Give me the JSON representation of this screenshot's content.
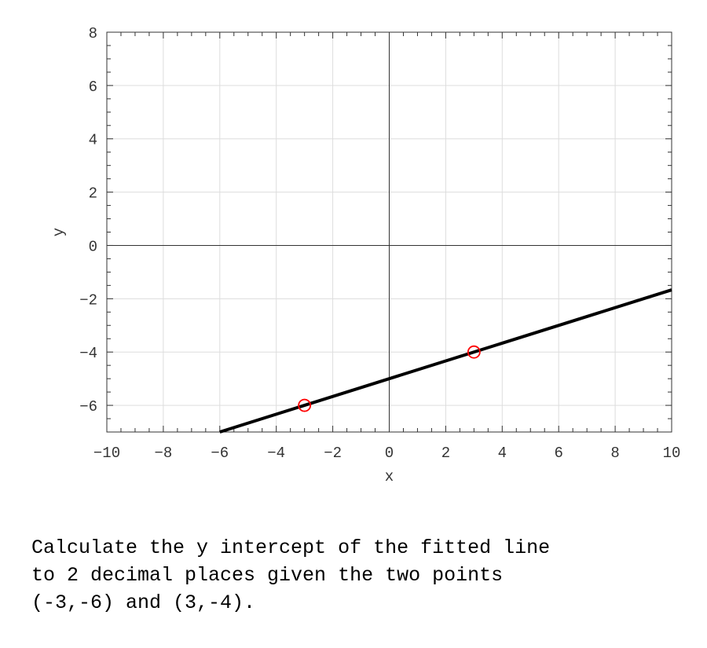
{
  "chart_data": {
    "type": "line",
    "title": "",
    "xlabel": "x",
    "ylabel": "y",
    "xlim": [
      -10,
      10
    ],
    "ylim": [
      -7,
      8
    ],
    "xticks": [
      -10,
      -8,
      -6,
      -4,
      -2,
      0,
      2,
      4,
      6,
      8,
      10
    ],
    "yticks": [
      -6,
      -4,
      -2,
      0,
      2,
      4,
      6,
      8
    ],
    "grid": true,
    "line": {
      "slope": 0.3333,
      "intercept": -5,
      "color": "#000000"
    },
    "points": [
      {
        "x": -3,
        "y": -6
      },
      {
        "x": 3,
        "y": -4
      }
    ],
    "point_color": "#ff0000"
  },
  "question": {
    "lines": [
      "Calculate the y intercept of the fitted line",
      "to 2 decimal places given the two points",
      "(-3,-6) and (3,-4)."
    ]
  }
}
